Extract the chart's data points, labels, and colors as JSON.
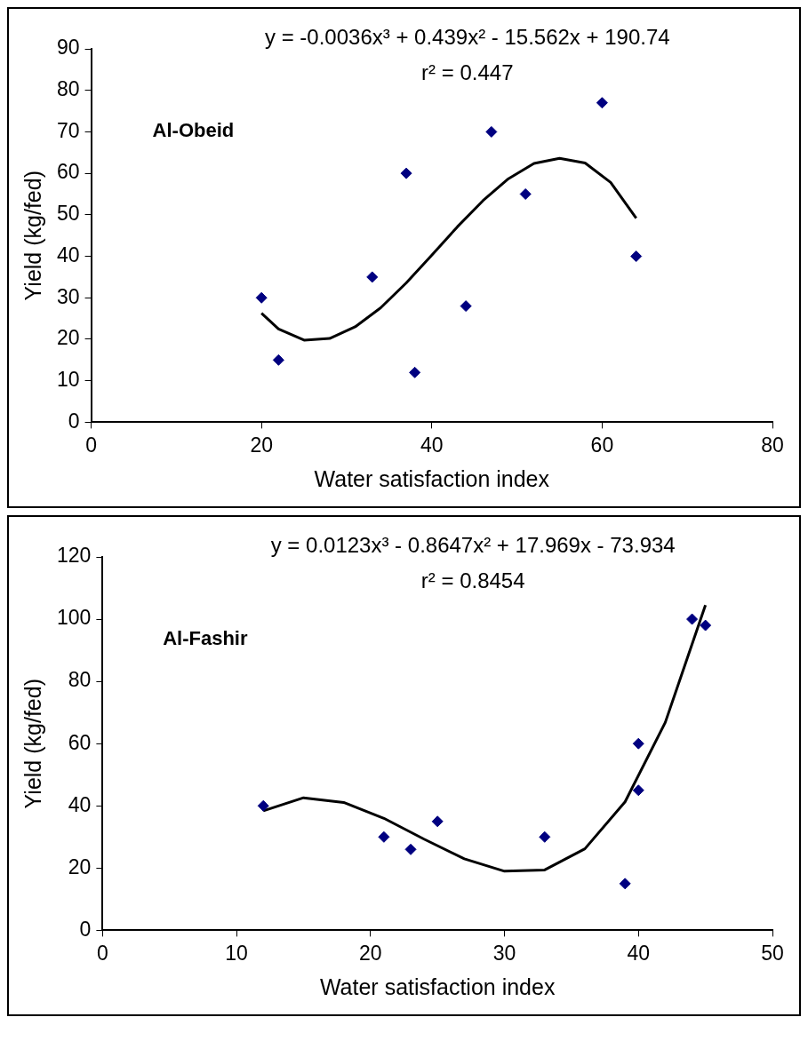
{
  "chart_data": [
    {
      "type": "scatter",
      "xlabel": "Water satisfaction index",
      "ylabel": "Yield (kg/fed)",
      "annotations": [
        "y = -0.0036x³ + 0.439x² - 15.562x + 190.74",
        "r² = 0.447",
        "Al-Obeid"
      ],
      "xlim": [
        0,
        80
      ],
      "xticks": [
        0,
        20,
        40,
        60,
        80
      ],
      "ylim": [
        0,
        90
      ],
      "yticks": [
        0,
        10,
        20,
        30,
        40,
        50,
        60,
        70,
        80,
        90
      ],
      "grid": false,
      "legend": false,
      "series": [
        {
          "type": "scatter",
          "marker": "diamond",
          "color": "#000080",
          "x": [
            20,
            22,
            33,
            37,
            38,
            44,
            47,
            51,
            60,
            64
          ],
          "values": [
            30,
            15,
            35,
            60,
            12,
            28,
            70,
            55,
            77,
            40
          ]
        },
        {
          "type": "line",
          "marker": "none",
          "color": "#000000",
          "x": [
            20,
            22,
            25,
            28,
            31,
            34,
            37,
            40,
            43,
            46,
            49,
            52,
            55,
            58,
            61,
            64
          ],
          "values": [
            26.3,
            22.5,
            19.8,
            20.2,
            23.0,
            27.6,
            33.6,
            40.3,
            47.1,
            53.4,
            58.7,
            62.4,
            63.6,
            62.5,
            57.8,
            49.2
          ]
        }
      ]
    },
    {
      "type": "scatter",
      "xlabel": "Water satisfaction index",
      "ylabel": "Yield (kg/fed)",
      "annotations": [
        "y = 0.0123x³ - 0.8647x² + 17.969x - 73.934",
        "r² = 0.8454",
        "Al-Fashir"
      ],
      "xlim": [
        0,
        50
      ],
      "xticks": [
        0,
        10,
        20,
        30,
        40,
        50
      ],
      "ylim": [
        0,
        120
      ],
      "yticks": [
        0,
        20,
        40,
        60,
        80,
        100,
        120
      ],
      "grid": false,
      "legend": false,
      "series": [
        {
          "type": "scatter",
          "marker": "diamond",
          "color": "#000080",
          "x": [
            12,
            21,
            23,
            25,
            33,
            39,
            40,
            40,
            44,
            45
          ],
          "values": [
            40,
            30,
            26,
            35,
            30,
            15,
            60,
            45,
            100,
            98
          ]
        },
        {
          "type": "line",
          "marker": "none",
          "color": "#000000",
          "x": [
            12,
            15,
            18,
            21,
            24,
            27,
            30,
            33,
            36,
            39,
            42,
            45
          ],
          "values": [
            38.4,
            42.6,
            41.1,
            36.0,
            29.3,
            23.0,
            19.0,
            19.4,
            26.2,
            41.3,
            66.8,
            104.5
          ]
        }
      ]
    }
  ]
}
